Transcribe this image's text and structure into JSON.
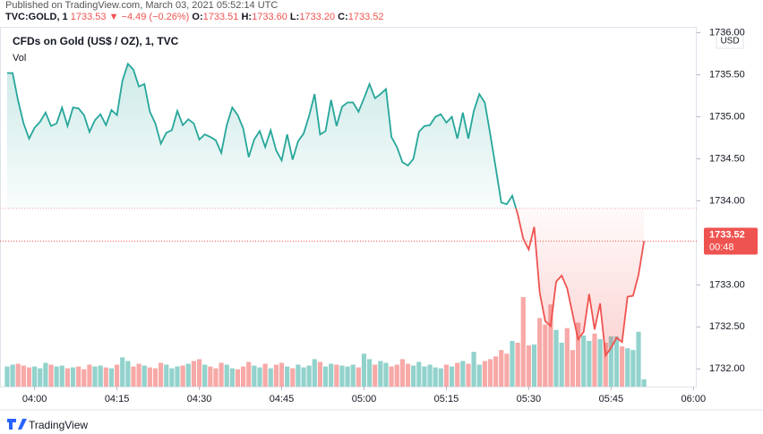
{
  "header": {
    "published": "Published on TradingView.com, March 03, 2021 05:52:14 UTC",
    "symbol": "TVC:GOLD, 1",
    "last": "1733.53",
    "arrow": "▼",
    "change": "−4.49 (−0.26%)",
    "o_label": "O:",
    "o": "1733.51",
    "h_label": "H:",
    "h": "1733.60",
    "l_label": "L:",
    "l": "1733.20",
    "c_label": "C:",
    "c": "1733.52"
  },
  "chart_data": {
    "type": "baseline",
    "title": "CFDs on Gold (US$ / OZ), 1, TVC",
    "volume_label": "Vol",
    "currency": "USD",
    "baseline": 1733.91,
    "up_color": "#26a69a",
    "down_color": "#ef5350",
    "xlim": [
      233.7,
      360.6
    ],
    "xticks": [
      {
        "value": 240,
        "label": "04:00"
      },
      {
        "value": 255,
        "label": "04:15"
      },
      {
        "value": 270,
        "label": "04:30"
      },
      {
        "value": 285,
        "label": "04:45"
      },
      {
        "value": 300,
        "label": "05:00"
      },
      {
        "value": 315,
        "label": "05:15"
      },
      {
        "value": 330,
        "label": "05:30"
      },
      {
        "value": 345,
        "label": "05:45"
      },
      {
        "value": 360,
        "label": "06:00"
      }
    ],
    "ylim": [
      1731.79,
      1736.07
    ],
    "yticks": [
      {
        "value": 1732,
        "label": "1732.00"
      },
      {
        "value": 1732.5,
        "label": "1732.50"
      },
      {
        "value": 1733,
        "label": "1733.00"
      },
      {
        "value": 1734,
        "label": "1734.00"
      },
      {
        "value": 1734.5,
        "label": "1734.50"
      },
      {
        "value": 1735,
        "label": "1735.00"
      },
      {
        "value": 1735.5,
        "label": "1735.50"
      },
      {
        "value": 1736,
        "label": "1736.00"
      }
    ],
    "x": [
      235,
      236,
      237,
      238,
      239,
      240,
      241,
      242,
      243,
      244,
      245,
      246,
      247,
      248,
      249,
      250,
      251,
      252,
      253,
      254,
      255,
      256,
      257,
      258,
      259,
      260,
      261,
      262,
      263,
      264,
      265,
      266,
      267,
      268,
      269,
      270,
      271,
      272,
      273,
      274,
      275,
      276,
      277,
      278,
      279,
      280,
      281,
      282,
      283,
      284,
      285,
      286,
      287,
      288,
      289,
      290,
      291,
      292,
      293,
      294,
      295,
      296,
      297,
      298,
      299,
      300,
      301,
      302,
      303,
      304,
      305,
      306,
      307,
      308,
      309,
      310,
      311,
      312,
      313,
      314,
      315,
      316,
      317,
      318,
      319,
      320,
      321,
      322,
      323,
      324,
      325,
      326,
      327,
      328,
      329,
      330,
      331,
      332,
      333,
      334,
      335,
      336,
      337,
      338,
      339,
      340,
      341,
      342,
      343,
      344,
      345,
      346,
      347,
      348,
      349,
      350,
      351
    ],
    "series": [
      {
        "name": "Price",
        "values": [
          1735.52,
          1735.52,
          1735.19,
          1734.92,
          1734.74,
          1734.87,
          1734.94,
          1735.05,
          1734.89,
          1734.92,
          1735.11,
          1734.89,
          1735.11,
          1735.1,
          1735.02,
          1734.82,
          1734.96,
          1735.03,
          1734.9,
          1735.08,
          1735.02,
          1735.43,
          1735.63,
          1735.56,
          1735.36,
          1735.39,
          1735.06,
          1734.92,
          1734.68,
          1734.81,
          1734.84,
          1735.07,
          1734.9,
          1734.97,
          1734.92,
          1734.73,
          1734.79,
          1734.76,
          1734.72,
          1734.57,
          1734.9,
          1735.11,
          1735.02,
          1734.86,
          1734.52,
          1734.73,
          1734.83,
          1734.64,
          1734.84,
          1734.6,
          1734.48,
          1734.79,
          1734.49,
          1734.71,
          1734.8,
          1735.01,
          1735.27,
          1734.79,
          1734.83,
          1735.2,
          1734.89,
          1735.12,
          1735.17,
          1735.17,
          1735.06,
          1735.22,
          1735.39,
          1735.22,
          1735.27,
          1735.33,
          1734.76,
          1734.64,
          1734.46,
          1734.42,
          1734.5,
          1734.82,
          1734.89,
          1734.9,
          1735.0,
          1735.03,
          1734.93,
          1735.0,
          1734.74,
          1735.05,
          1734.74,
          1735.07,
          1735.27,
          1735.17,
          1734.79,
          1734.39,
          1733.98,
          1733.96,
          1734.06,
          1733.84,
          1733.55,
          1733.42,
          1733.69,
          1732.91,
          1732.57,
          1732.51,
          1733.04,
          1733.11,
          1732.96,
          1732.65,
          1732.35,
          1732.44,
          1732.89,
          1732.47,
          1732.78,
          1732.16,
          1732.25,
          1732.37,
          1732.32,
          1732.86,
          1732.87,
          1733.12,
          1733.52
        ]
      },
      {
        "name": "Vol",
        "values": [
          22,
          24,
          25,
          23,
          21,
          22,
          20,
          26,
          24,
          22,
          23,
          20,
          21,
          22,
          19,
          24,
          22,
          23,
          21,
          20,
          24,
          32,
          28,
          22,
          25,
          23,
          21,
          20,
          26,
          24,
          20,
          22,
          23,
          25,
          28,
          30,
          24,
          22,
          20,
          26,
          24,
          20,
          19,
          22,
          27,
          23,
          21,
          25,
          20,
          24,
          26,
          22,
          20,
          24,
          21,
          23,
          30,
          27,
          22,
          25,
          24,
          23,
          22,
          24,
          21,
          36,
          30,
          24,
          28,
          26,
          22,
          24,
          30,
          25,
          23,
          27,
          22,
          24,
          21,
          20,
          24,
          22,
          26,
          28,
          25,
          38,
          24,
          28,
          30,
          33,
          40,
          36,
          50,
          48,
          98,
          45,
          46,
          75,
          68,
          90,
          62,
          48,
          64,
          40,
          70,
          56,
          50,
          58,
          52,
          48,
          55,
          55,
          44,
          42,
          40,
          60,
          8
        ]
      }
    ],
    "price_label": "1733.52",
    "countdown": "00:48",
    "brand": "TradingView"
  }
}
